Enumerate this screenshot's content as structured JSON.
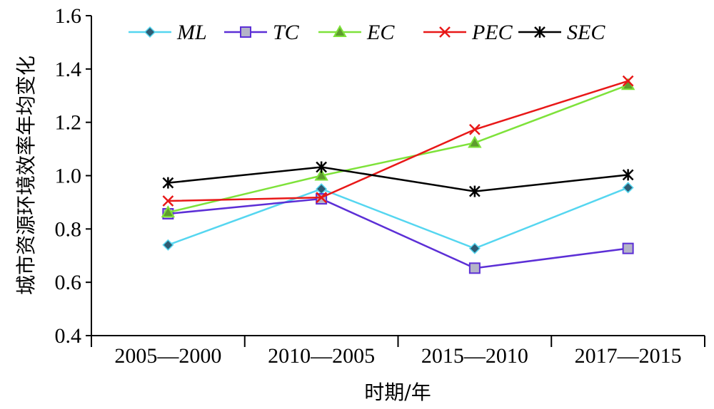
{
  "chart_data": {
    "type": "line",
    "categories": [
      "2005—2000",
      "2010—2005",
      "2015—2010",
      "2017—2015"
    ],
    "xlabel": "时期/年",
    "ylabel": "城市资源环境效率年均变化",
    "ylim": [
      0.4,
      1.6
    ],
    "yticks": [
      0.4,
      0.6,
      0.8,
      1.0,
      1.2,
      1.4,
      1.6
    ],
    "ytick_labels": [
      "0.4",
      "0.6",
      "0.8",
      "1.0",
      "1.2",
      "1.4",
      "1.6"
    ],
    "grid": false,
    "legend_position": "top",
    "series": [
      {
        "name": "ML",
        "values": [
          0.74,
          0.95,
          0.727,
          0.955
        ],
        "color": "#55d6f0",
        "marker": "diamond",
        "marker_fill": "#2e5c73"
      },
      {
        "name": "TC",
        "values": [
          0.857,
          0.913,
          0.653,
          0.727
        ],
        "color": "#5c2fd6",
        "marker": "square",
        "marker_fill": "#b4b4c8"
      },
      {
        "name": "EC",
        "values": [
          0.862,
          1.0,
          1.123,
          1.34
        ],
        "color": "#7ee23a",
        "marker": "triangle",
        "marker_fill": "#5e9c2e"
      },
      {
        "name": "PEC",
        "values": [
          0.905,
          0.918,
          1.173,
          1.355
        ],
        "color": "#e81818",
        "marker": "x",
        "marker_fill": "#e81818"
      },
      {
        "name": "SEC",
        "values": [
          0.973,
          1.032,
          0.941,
          1.003
        ],
        "color": "#000000",
        "marker": "star",
        "marker_fill": "#000000"
      }
    ]
  }
}
